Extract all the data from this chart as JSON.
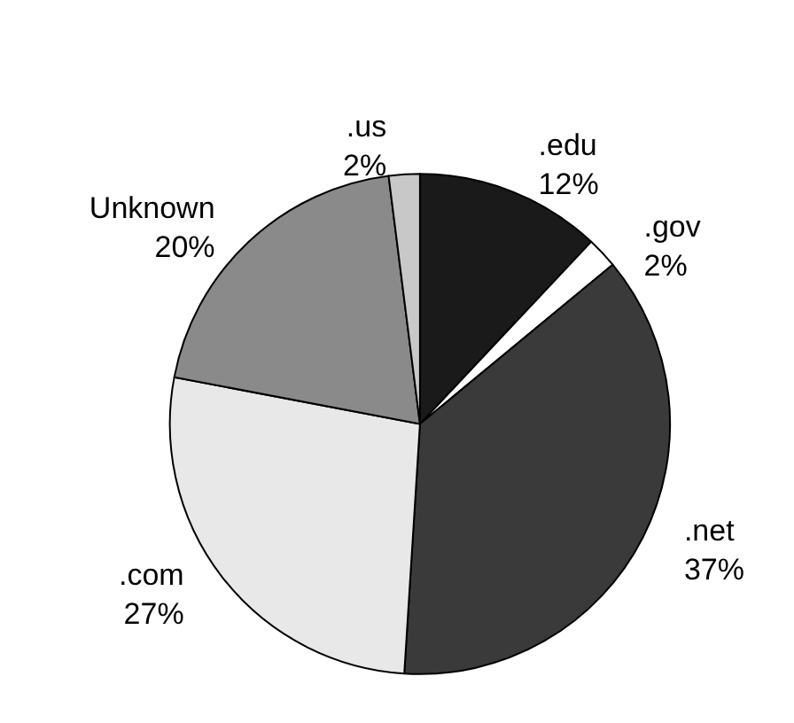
{
  "chart_data": {
    "type": "pie",
    "categories": [
      ".edu",
      ".gov",
      ".net",
      ".com",
      "Unknown",
      ".us"
    ],
    "values": [
      12,
      2,
      37,
      27,
      20,
      2
    ],
    "value_labels": [
      "12%",
      "2%",
      "37%",
      "27%",
      "20%",
      "2%"
    ],
    "colors": [
      "#1a1a1a",
      "#ffffff",
      "#3a3a3a",
      "#e8e8e8",
      "#8a8a8a",
      "#c8c8c8"
    ]
  }
}
